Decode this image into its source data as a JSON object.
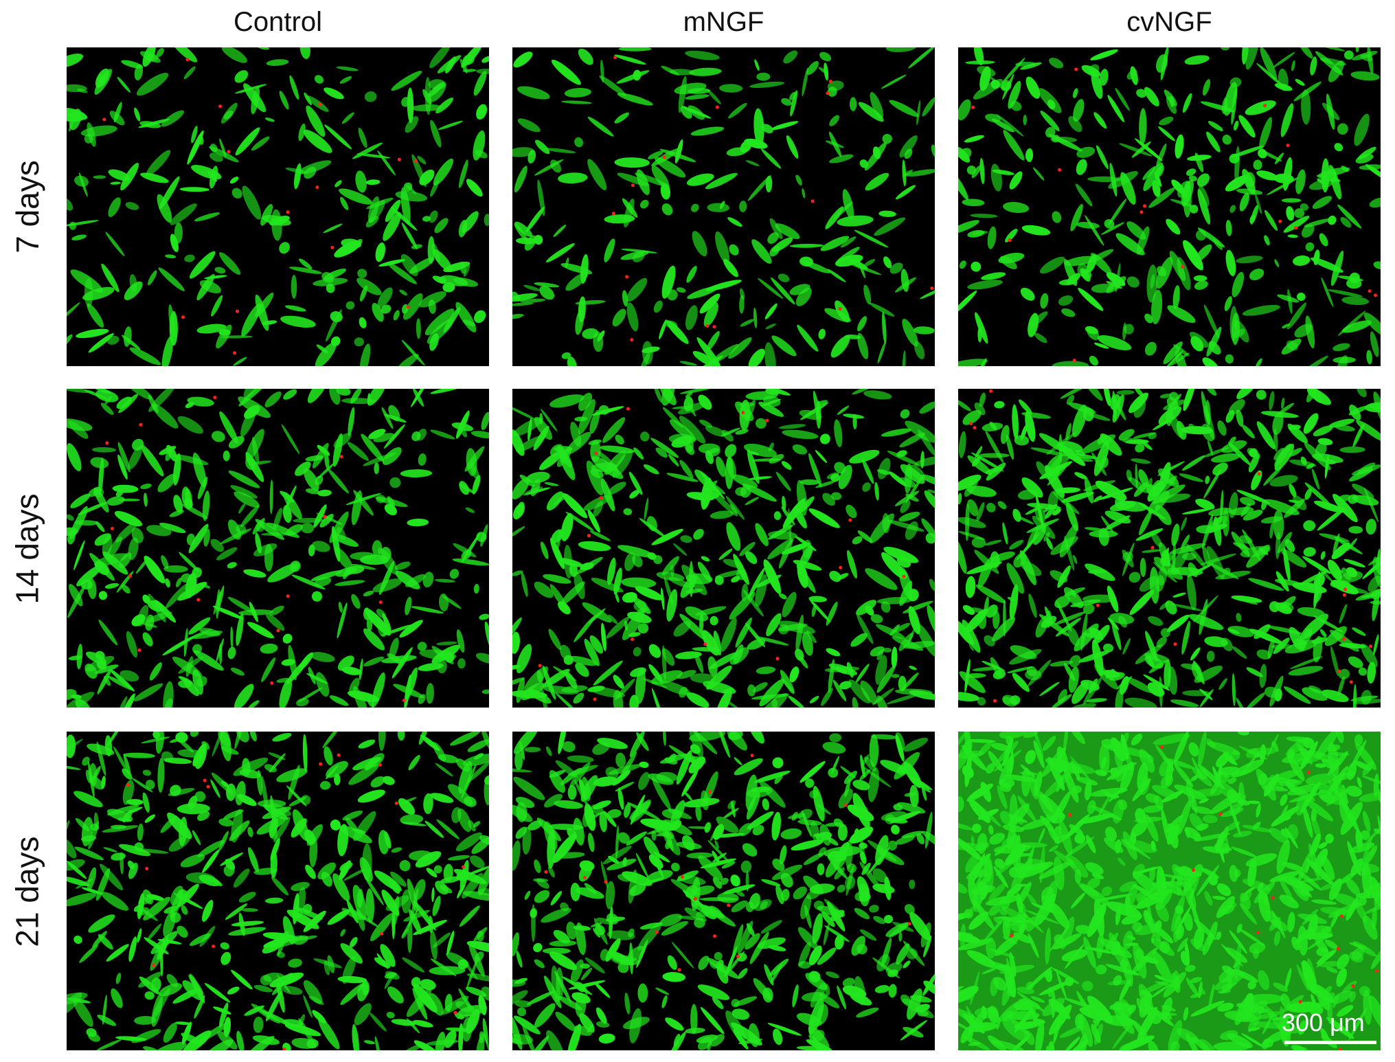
{
  "columns": [
    "Control",
    "mNGF",
    "cvNGF"
  ],
  "rows": [
    "7 days",
    "14 days",
    "21 days"
  ],
  "scale_bar": {
    "label": "300 μm"
  },
  "colors": {
    "live_stain": "#22e61e",
    "dead_stain": "#ff2020",
    "background": "#000000"
  }
}
